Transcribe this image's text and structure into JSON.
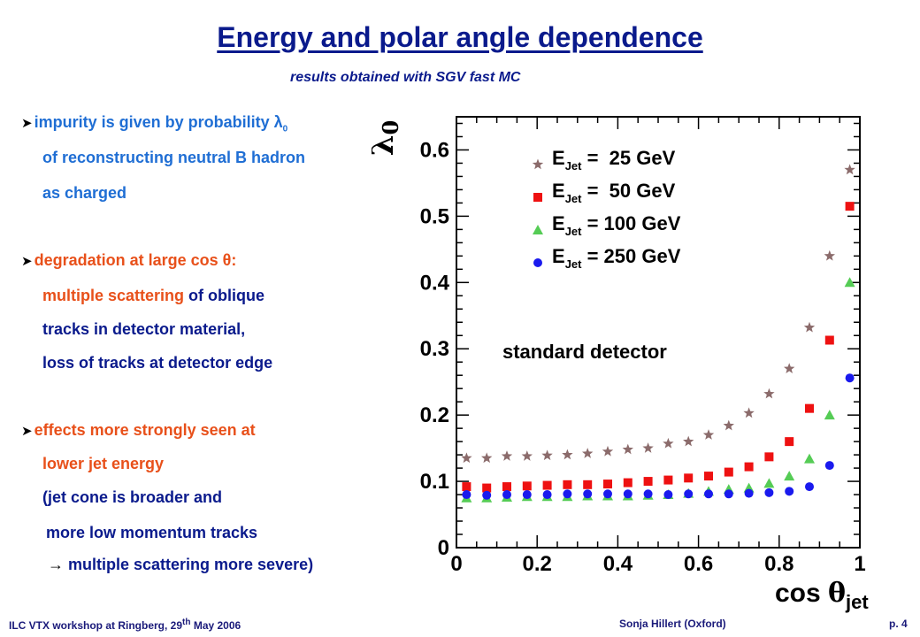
{
  "slide": {
    "title": "Energy and polar angle dependence",
    "subtitle": "results obtained with SGV fast MC"
  },
  "bullets": {
    "b1_line1_text": "impurity is given by probability ",
    "b1_lambda": "λ",
    "b1_sub": "0",
    "b1_line2": "of reconstructing neutral B hadron",
    "b1_line3": "as charged",
    "b2_line1_text": "degradation at large cos ",
    "b2_theta": "θ",
    "b2_colon": ":",
    "b2_line2_a": "multiple scattering",
    "b2_line2_b": " of oblique",
    "b2_line3": "tracks in detector material,",
    "b2_line4": "loss of tracks at detector edge",
    "b3_line1": "effects more strongly seen at",
    "b3_line2": "lower jet energy",
    "b3_line3": "(jet cone is broader and",
    "b3_line4": "more low momentum tracks",
    "b3_line5_arrow": "→",
    "b3_line5": " multiple scattering more severe)"
  },
  "footer": {
    "left_text": "ILC VTX workshop at Ringberg, 29",
    "left_sup": "th",
    "left_rest": " May 2006",
    "center": "Sonja Hillert (Oxford)",
    "right": "p. 4"
  },
  "colors": {
    "title": "#0a1a8c",
    "e25": "#8b6b6b",
    "e50": "#ee1111",
    "e100": "#55cc55",
    "e250": "#1a1aee"
  },
  "chart_data": {
    "type": "scatter",
    "ylabel": "λ0",
    "xlabel": "cos θjet",
    "annotation": "standard detector",
    "xlim": [
      0,
      1
    ],
    "ylim": [
      0,
      0.65
    ],
    "xticks": [
      "0",
      "0.2",
      "0.4",
      "0.6",
      "0.8",
      "1"
    ],
    "yticks": [
      "0",
      "0.1",
      "0.2",
      "0.3",
      "0.4",
      "0.5",
      "0.6"
    ],
    "x": [
      0.025,
      0.075,
      0.125,
      0.175,
      0.225,
      0.275,
      0.325,
      0.375,
      0.425,
      0.475,
      0.525,
      0.575,
      0.625,
      0.675,
      0.725,
      0.775,
      0.825,
      0.875,
      0.925,
      0.975
    ],
    "series": [
      {
        "name": "E_Jet =  25 GeV",
        "marker": "star",
        "color": "#8b6b6b",
        "values": [
          0.135,
          0.135,
          0.138,
          0.138,
          0.139,
          0.14,
          0.142,
          0.145,
          0.148,
          0.15,
          0.157,
          0.16,
          0.17,
          0.184,
          0.203,
          0.232,
          0.27,
          0.332,
          0.44,
          0.57
        ]
      },
      {
        "name": "E_Jet =  50 GeV",
        "marker": "square",
        "color": "#ee1111",
        "values": [
          0.092,
          0.09,
          0.092,
          0.093,
          0.094,
          0.095,
          0.095,
          0.096,
          0.098,
          0.1,
          0.102,
          0.105,
          0.108,
          0.114,
          0.122,
          0.137,
          0.16,
          0.21,
          0.313,
          0.515
        ]
      },
      {
        "name": "E_Jet = 100 GeV",
        "marker": "triangle",
        "color": "#55cc55",
        "values": [
          0.075,
          0.075,
          0.076,
          0.077,
          0.077,
          0.077,
          0.078,
          0.078,
          0.078,
          0.079,
          0.08,
          0.082,
          0.085,
          0.088,
          0.09,
          0.097,
          0.108,
          0.134,
          0.2,
          0.4
        ]
      },
      {
        "name": "E_Jet = 250 GeV",
        "marker": "circle",
        "color": "#1a1aee",
        "values": [
          0.08,
          0.079,
          0.08,
          0.08,
          0.08,
          0.081,
          0.081,
          0.081,
          0.081,
          0.081,
          0.08,
          0.081,
          0.081,
          0.081,
          0.082,
          0.083,
          0.085,
          0.092,
          0.124,
          0.256
        ]
      }
    ]
  }
}
